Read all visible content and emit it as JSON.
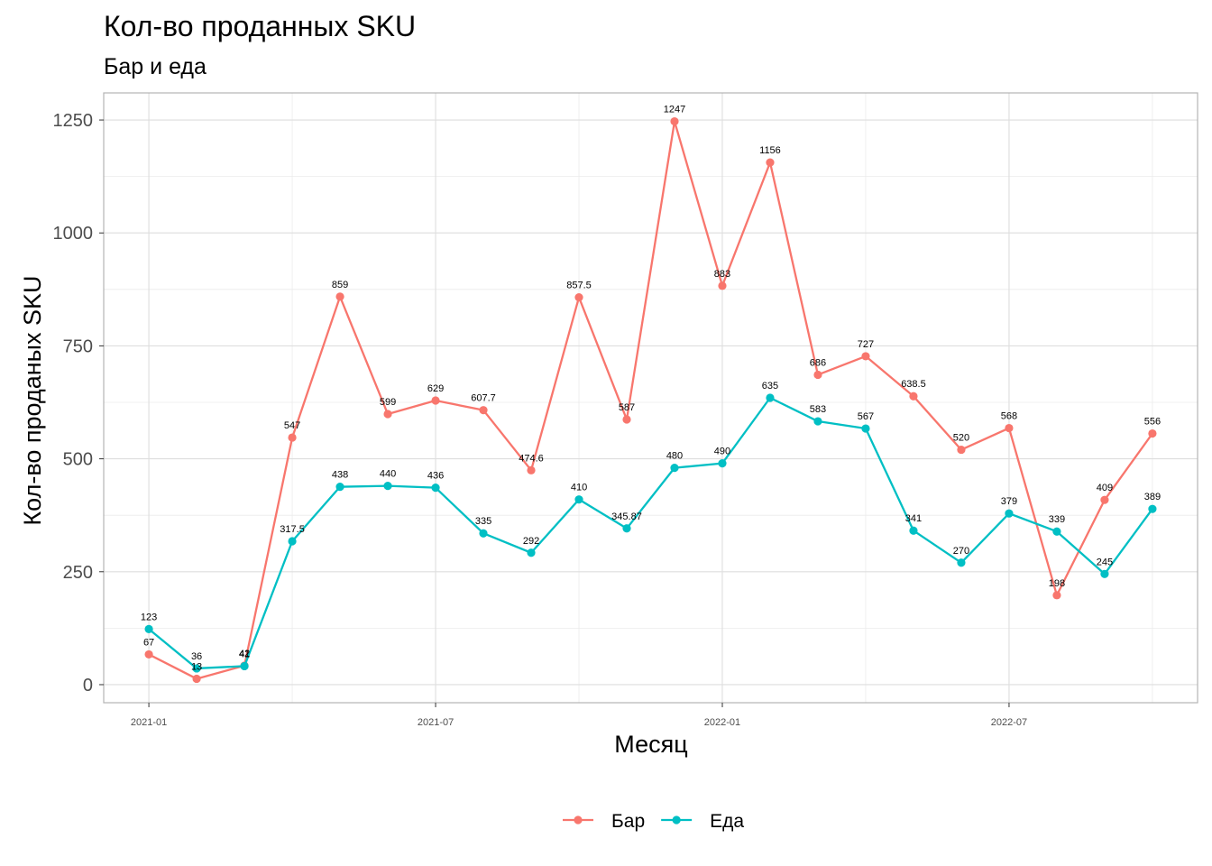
{
  "chart_data": {
    "type": "line",
    "title": "Кол-во проданных SKU",
    "subtitle": "Бар и еда",
    "xlabel": "Месяц",
    "ylabel": "Кол-во проданых SKU",
    "x": [
      "2021-01",
      "2021-02",
      "2021-03",
      "2021-04",
      "2021-05",
      "2021-06",
      "2021-07",
      "2021-08",
      "2021-09",
      "2021-10",
      "2021-11",
      "2021-12",
      "2022-01",
      "2022-02",
      "2022-03",
      "2022-04",
      "2022-05",
      "2022-06",
      "2022-07",
      "2022-08",
      "2022-09",
      "2022-10"
    ],
    "x_ticks": [
      "2021-01",
      "2021-07",
      "2022-01",
      "2022-07"
    ],
    "y_ticks": [
      0,
      250,
      500,
      750,
      1000,
      1250
    ],
    "ylim": [
      -40,
      1310
    ],
    "grid": true,
    "legend_position": "bottom",
    "series": [
      {
        "name": "Бар",
        "color": "#F8766D",
        "values": [
          67,
          13,
          42,
          547,
          859,
          599,
          629,
          607.7,
          474.6,
          857.5,
          587,
          1247,
          883,
          1156,
          686,
          727,
          638.5,
          520,
          568,
          198,
          409,
          556
        ],
        "labels": [
          "67",
          "13",
          "42",
          "547",
          "859",
          "599",
          "629",
          "607.7",
          "474.6",
          "857.5",
          "587",
          "1247",
          "883",
          "1156",
          "686",
          "727",
          "638.5",
          "520",
          "568",
          "198",
          "409",
          "556"
        ]
      },
      {
        "name": "Еда",
        "color": "#00BFC4",
        "values": [
          123,
          36,
          41,
          317.5,
          438,
          440,
          436,
          335,
          292,
          410,
          345.87,
          480,
          490,
          635,
          583,
          567,
          341,
          270,
          379,
          339,
          245,
          389
        ],
        "labels": [
          "123",
          "36",
          "41",
          "317.5",
          "438",
          "440",
          "436",
          "335",
          "292",
          "410",
          "345.87",
          "480",
          "490",
          "635",
          "583",
          "567",
          "341",
          "270",
          "379",
          "339",
          "245",
          "389"
        ]
      }
    ]
  }
}
